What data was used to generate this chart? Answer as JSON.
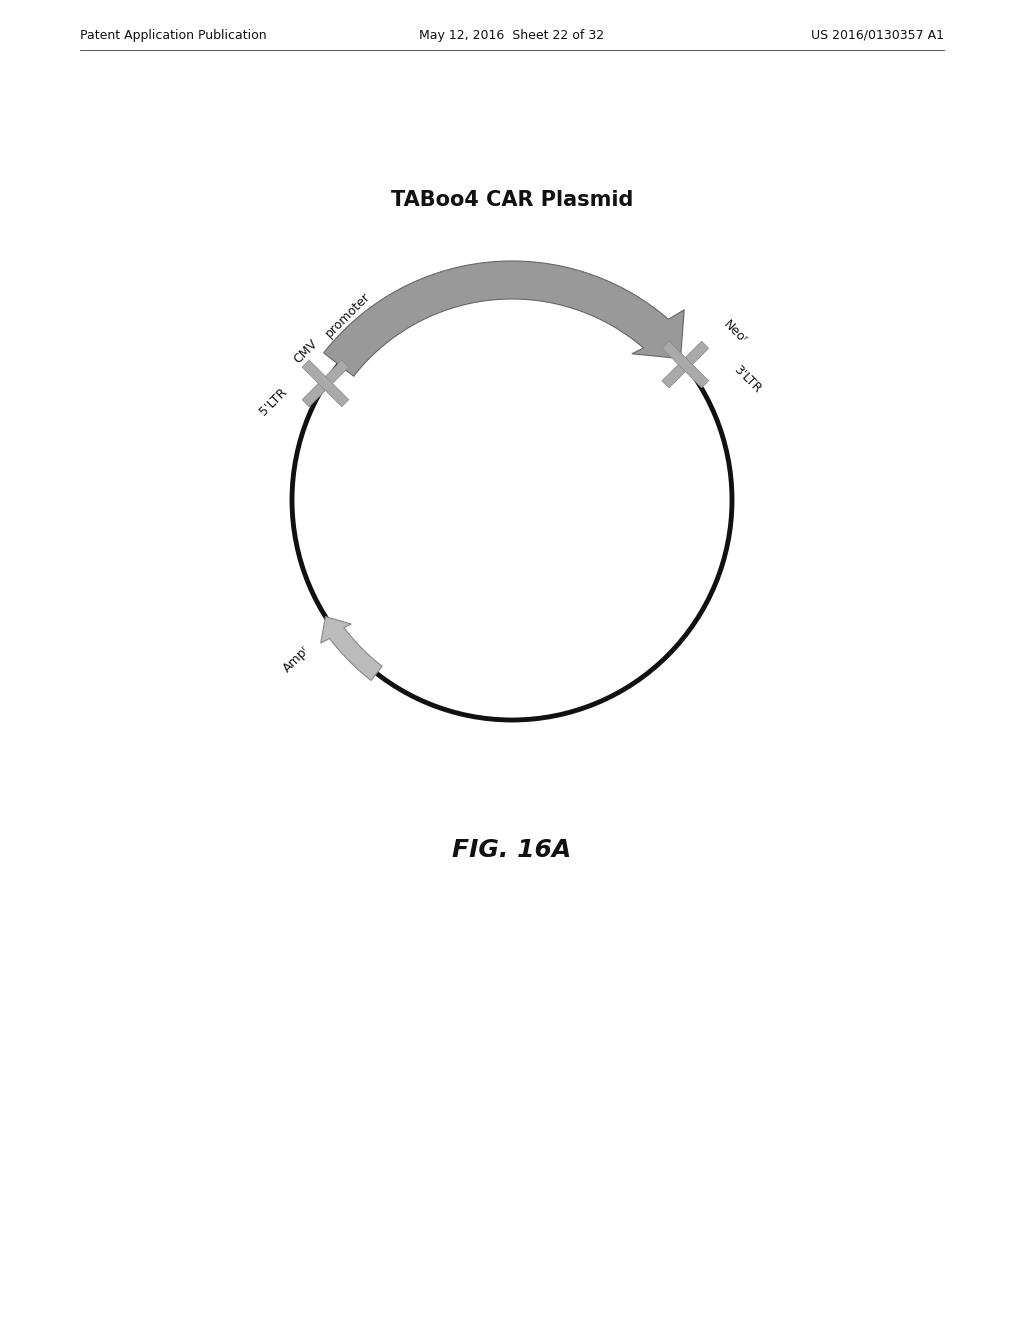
{
  "title": "TABoo4 CAR Plasmid",
  "fig_label": "FIG. 16A",
  "header_left": "Patent Application Publication",
  "header_center": "May 12, 2016  Sheet 22 of 32",
  "header_right": "US 2016/0130357 A1",
  "background_color": "#ffffff",
  "circle_color": "#111111",
  "circle_linewidth": 3.5,
  "arrow_color_main": "#999999",
  "arrow_color_main_edge": "#666666",
  "arrow_color_ampr": "#bbbbbb",
  "arrow_color_ampr_edge": "#888888",
  "cross_color": "#aaaaaa",
  "cross_edge": "#888888",
  "label_fontsize": 9,
  "title_fontsize": 15,
  "figlabel_fontsize": 18,
  "header_fontsize": 9
}
